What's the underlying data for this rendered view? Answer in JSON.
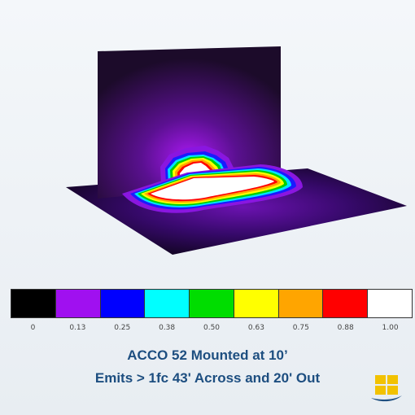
{
  "legend": {
    "colors": [
      "#000000",
      "#a010f0",
      "#0000ff",
      "#00ffff",
      "#00dd00",
      "#ffff00",
      "#ffa500",
      "#ff0000",
      "#ffffff"
    ],
    "labels": [
      "0",
      "0.13",
      "0.25",
      "0.38",
      "0.50",
      "0.63",
      "0.75",
      "0.88",
      "1.00"
    ]
  },
  "caption": {
    "line1": "ACCO 52 Mounted at  10’",
    "line2": "Emits >  1fc 43' Across and 20' Out"
  },
  "logo": {
    "icon": "brand-logo-icon",
    "colors": [
      "#f2c200",
      "#1d4e80"
    ]
  }
}
